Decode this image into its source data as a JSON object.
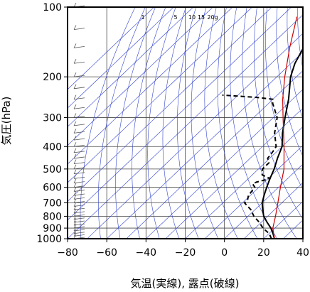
{
  "chart_data": {
    "type": "line",
    "subtype": "skew-t-log-p",
    "xlabel": "気温(実線), 露点(破線)",
    "ylabel": "気圧(hPa)",
    "xlim": [
      -80,
      40
    ],
    "ylim": [
      1000,
      100
    ],
    "y_scale": "log",
    "x_ticks": [
      "−80",
      "−60",
      "−40",
      "−20",
      "0",
      "20",
      "40"
    ],
    "y_ticks": [
      "100",
      "200",
      "300",
      "400",
      "500",
      "600",
      "700",
      "800",
      "900",
      "1000"
    ],
    "mixing_ratio_labels": [
      "1",
      "5",
      "10",
      "15",
      "20g"
    ],
    "grid": true,
    "colors": {
      "temperature": "#000000",
      "dewpoint": "#000000",
      "parcel": "#cc0000",
      "adiabats": "#3344cc",
      "wind_barbs": "#555555"
    },
    "series": [
      {
        "style": "solid",
        "points": [
          {
            "p": 1000,
            "t": 25.5
          },
          {
            "p": 950,
            "t": 22
          },
          {
            "p": 900,
            "t": 18
          },
          {
            "p": 850,
            "t": 13
          },
          {
            "p": 800,
            "t": 8
          },
          {
            "p": 750,
            "t": 4
          },
          {
            "p": 700,
            "t": 0
          },
          {
            "p": 650,
            "t": -3
          },
          {
            "p": 600,
            "t": -6
          },
          {
            "p": 550,
            "t": -9
          },
          {
            "p": 500,
            "t": -12
          },
          {
            "p": 450,
            "t": -16
          },
          {
            "p": 400,
            "t": -20
          },
          {
            "p": 350,
            "t": -27
          },
          {
            "p": 300,
            "t": -34
          },
          {
            "p": 250,
            "t": -42
          },
          {
            "p": 200,
            "t": -53
          },
          {
            "p": 175,
            "t": -58
          },
          {
            "p": 150,
            "t": -62
          },
          {
            "p": 130,
            "t": -68
          },
          {
            "p": 120,
            "t": -69
          },
          {
            "p": 115,
            "t": -70
          },
          {
            "p": 110,
            "t": -71
          },
          {
            "p": 100,
            "t": -72
          }
        ]
      },
      {
        "style": "dashed",
        "points": [
          {
            "p": 1000,
            "t": 24
          },
          {
            "p": 950,
            "t": 20
          },
          {
            "p": 900,
            "t": 14
          },
          {
            "p": 850,
            "t": 9
          },
          {
            "p": 800,
            "t": 3
          },
          {
            "p": 750,
            "t": -2
          },
          {
            "p": 700,
            "t": -9
          },
          {
            "p": 680,
            "t": -9
          },
          {
            "p": 650,
            "t": -11
          },
          {
            "p": 600,
            "t": -12
          },
          {
            "p": 580,
            "t": -15
          },
          {
            "p": 570,
            "t": -14
          },
          {
            "p": 550,
            "t": -9
          },
          {
            "p": 530,
            "t": -15
          },
          {
            "p": 500,
            "t": -18
          },
          {
            "p": 470,
            "t": -18
          },
          {
            "p": 450,
            "t": -21
          },
          {
            "p": 420,
            "t": -22
          },
          {
            "p": 400,
            "t": -23
          },
          {
            "p": 350,
            "t": -31
          },
          {
            "p": 300,
            "t": -38
          },
          {
            "p": 260,
            "t": -48
          },
          {
            "p": 250,
            "t": -50
          },
          {
            "p": 245,
            "t": -60
          },
          {
            "p": 240,
            "t": -78
          }
        ]
      },
      {
        "style": "parcel",
        "points": [
          {
            "p": 1000,
            "t": 25.5
          },
          {
            "p": 900,
            "t": 19
          },
          {
            "p": 800,
            "t": 14
          },
          {
            "p": 700,
            "t": 8
          },
          {
            "p": 600,
            "t": 1
          },
          {
            "p": 500,
            "t": -7
          },
          {
            "p": 400,
            "t": -19
          },
          {
            "p": 300,
            "t": -35
          },
          {
            "p": 250,
            "t": -45
          },
          {
            "p": 200,
            "t": -56
          },
          {
            "p": 150,
            "t": -69
          },
          {
            "p": 130,
            "t": -75
          },
          {
            "p": 110,
            "t": -82
          }
        ]
      }
    ]
  }
}
